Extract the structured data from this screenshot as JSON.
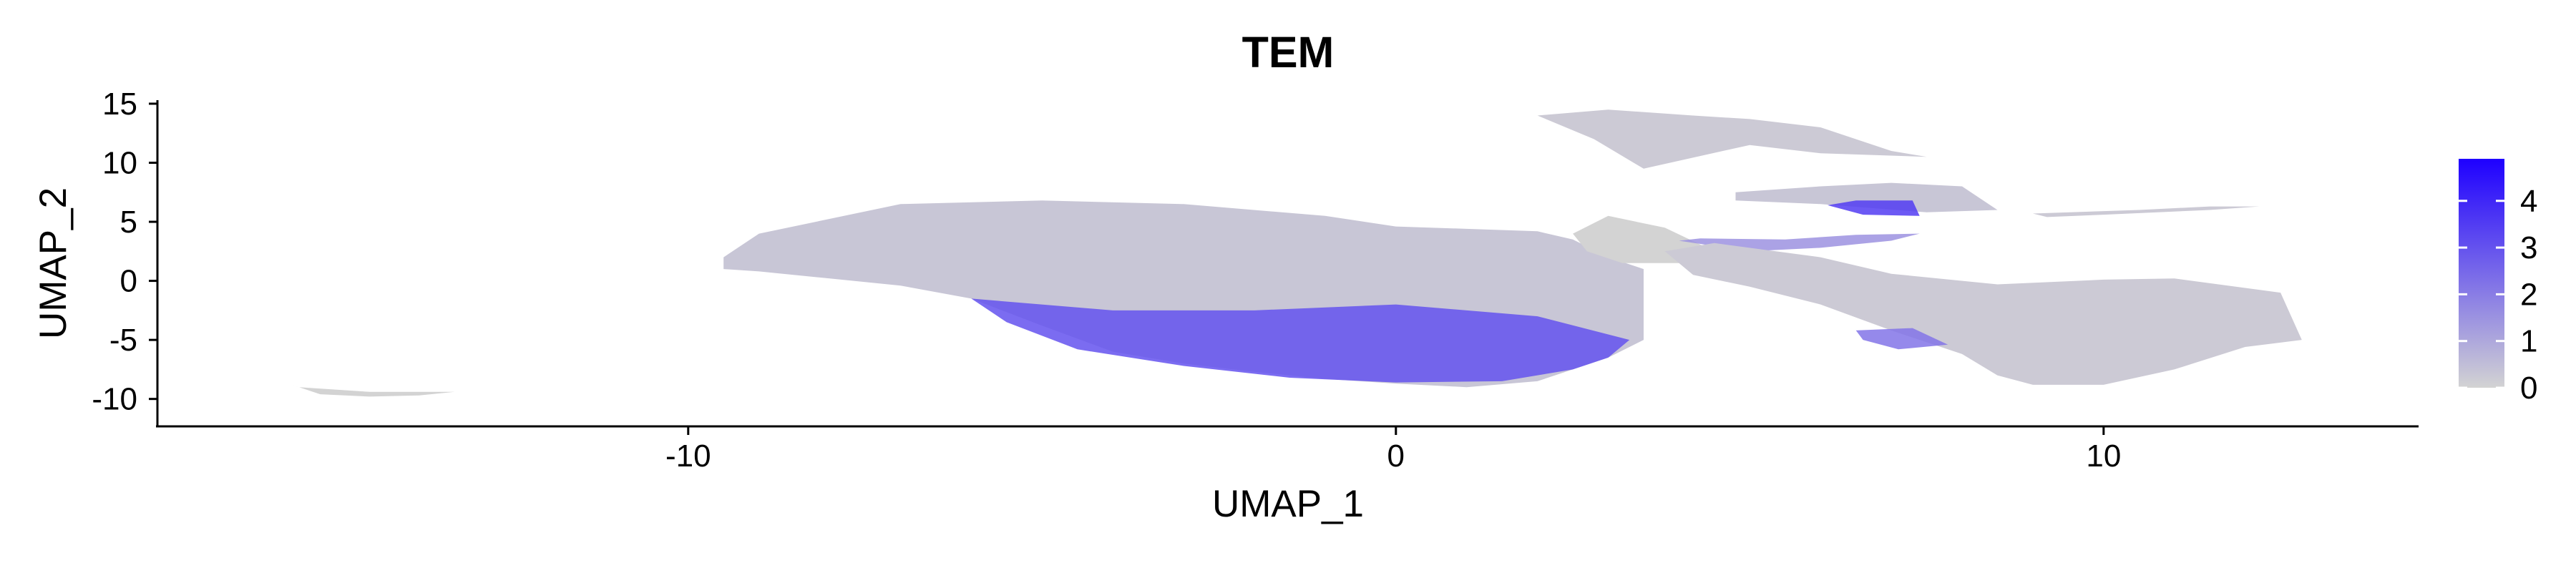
{
  "chart_data": {
    "type": "scatter",
    "title": "TEM",
    "xlabel": "UMAP_1",
    "ylabel": "UMAP_2",
    "xlim": [
      -17.5,
      14.4
    ],
    "ylim": [
      -12.2,
      15.3
    ],
    "x_ticks": [
      -10,
      0,
      10
    ],
    "x_tick_labels": [
      "-10",
      "0",
      "10"
    ],
    "y_ticks": [
      15,
      10,
      5,
      0,
      -5,
      -10
    ],
    "y_tick_labels": [
      "15",
      "10",
      "5",
      "0",
      "-5",
      "-10"
    ],
    "grid": false,
    "color_scale": {
      "low_color": "#d3d3d3",
      "high_color": "#1e00ff",
      "min": 0,
      "max": 4.9,
      "ticks": [
        4,
        3,
        2,
        1,
        0
      ],
      "tick_labels": [
        "4",
        "3",
        "2",
        "1",
        "0"
      ],
      "legend_position": "right"
    },
    "regions": [
      {
        "name": "main",
        "x": [
          -9.5,
          -9.5,
          -9.0,
          -7.0,
          -5.0,
          -3.0,
          -1.0,
          0.0,
          1.0,
          2.0,
          2.5,
          3.0,
          3.5,
          3.5,
          3.0,
          2.5,
          2.0,
          1.0,
          0.0,
          -1.0,
          -2.0,
          -3.0,
          -4.0,
          -5.0,
          -6.0,
          -7.0,
          -8.0,
          -9.0
        ],
        "y": [
          1.0,
          2.0,
          4.0,
          6.5,
          6.8,
          6.5,
          5.5,
          4.6,
          4.4,
          4.2,
          3.5,
          2.0,
          1.0,
          -5.0,
          -6.5,
          -7.5,
          -8.5,
          -9.0,
          -8.7,
          -8.3,
          -7.7,
          -7.0,
          -6.0,
          -3.8,
          -1.5,
          -0.4,
          0.2,
          0.8
        ],
        "value": 0.3
      },
      {
        "name": "main-expression-lobe",
        "x": [
          -6.0,
          -4.0,
          -2.0,
          0.0,
          2.0,
          3.3,
          3.0,
          2.5,
          1.5,
          0.0,
          -1.5,
          -3.0,
          -4.5,
          -5.5
        ],
        "y": [
          -1.5,
          -2.5,
          -2.5,
          -2.0,
          -3.0,
          -5.0,
          -6.5,
          -7.5,
          -8.5,
          -8.6,
          -8.2,
          -7.2,
          -5.8,
          -3.5
        ],
        "value": 3.0
      },
      {
        "name": "bridge",
        "x": [
          2.5,
          3.0,
          3.8,
          4.5,
          4.0,
          3.2,
          2.7
        ],
        "y": [
          4.0,
          5.5,
          4.5,
          2.5,
          1.5,
          1.5,
          2.5
        ],
        "value": 0.0
      },
      {
        "name": "top-lobe",
        "x": [
          2.0,
          3.0,
          4.2,
          5.0,
          6.0,
          7.0,
          7.5,
          6.0,
          5.0,
          3.5,
          2.8
        ],
        "y": [
          14.0,
          14.5,
          14.0,
          13.7,
          13.0,
          11.0,
          10.5,
          10.8,
          11.5,
          9.5,
          12.0
        ],
        "value": 0.2
      },
      {
        "name": "mid-arm",
        "x": [
          4.8,
          6.0,
          7.0,
          8.0,
          8.5,
          7.5,
          6.0,
          4.8
        ],
        "y": [
          7.5,
          8.0,
          8.3,
          8.0,
          6.0,
          5.8,
          6.5,
          6.8
        ],
        "value": 0.3
      },
      {
        "name": "mid-hotspot",
        "x": [
          6.1,
          6.5,
          7.3,
          7.4,
          6.6
        ],
        "y": [
          6.4,
          6.8,
          6.8,
          5.5,
          5.6
        ],
        "value": 3.5
      },
      {
        "name": "right-band",
        "x": [
          4.0,
          5.0,
          6.0,
          7.0,
          7.4,
          6.5,
          5.5,
          4.3
        ],
        "y": [
          3.4,
          2.5,
          2.8,
          3.4,
          4.0,
          3.9,
          3.5,
          3.6
        ],
        "value": 1.5
      },
      {
        "name": "right-blob",
        "x": [
          3.8,
          4.5,
          6.0,
          7.0,
          8.5,
          10.0,
          11.0,
          12.5,
          12.8,
          12.0,
          11.0,
          10.0,
          9.0,
          8.5,
          8.0,
          7.0,
          6.0,
          5.0,
          4.2
        ],
        "y": [
          2.5,
          3.2,
          2.0,
          0.6,
          -0.3,
          0.1,
          0.2,
          -1.0,
          -5.0,
          -5.6,
          -7.5,
          -8.8,
          -8.8,
          -8.0,
          -6.2,
          -4.2,
          -2.0,
          -0.5,
          0.5
        ],
        "value": 0.2
      },
      {
        "name": "right-blob-spot",
        "x": [
          6.5,
          7.3,
          7.8,
          7.1,
          6.6
        ],
        "y": [
          -4.2,
          -4.0,
          -5.4,
          -5.8,
          -5.0
        ],
        "value": 2.2
      },
      {
        "name": "small-arm",
        "x": [
          9.0,
          10.5,
          11.5,
          12.2,
          11.5,
          10.0,
          9.2
        ],
        "y": [
          5.7,
          6.0,
          6.3,
          6.3,
          6.0,
          5.6,
          5.4
        ],
        "value": 0.2
      },
      {
        "name": "far-left-fragment",
        "x": [
          -15.6,
          -15.2,
          -14.5,
          -13.8,
          -13.3,
          -14.5,
          -15.5
        ],
        "y": [
          -8.8,
          -9.6,
          -9.8,
          -9.7,
          -9.4,
          -9.4,
          -9.0
        ],
        "value": 0.0
      }
    ]
  }
}
